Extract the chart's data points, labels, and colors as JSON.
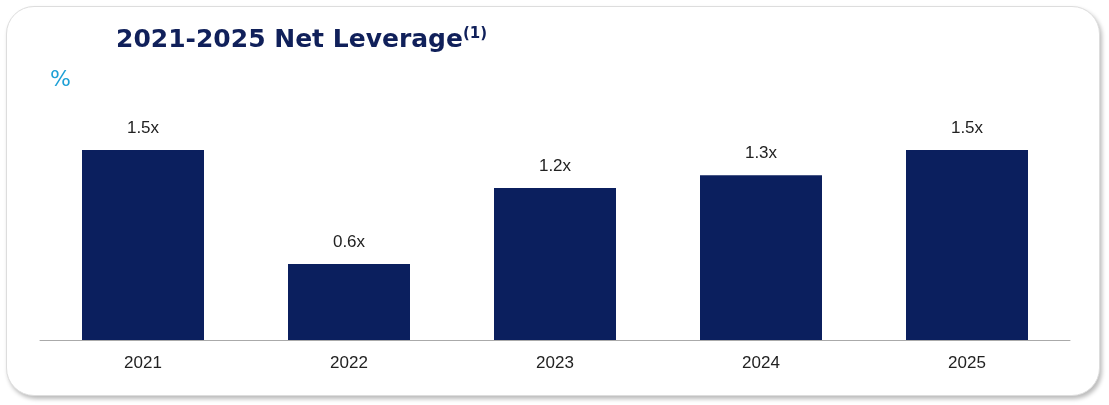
{
  "chart_data": {
    "type": "bar",
    "title": "2021-2025 Net Leverage$^{(1)}$",
    "subtitle": "%",
    "categories": [
      "2021",
      "2022",
      "2023",
      "2024",
      "2025"
    ],
    "values": [
      1.5,
      0.6,
      1.2,
      1.3,
      1.5
    ],
    "value_labels": [
      "1.5x",
      "0.6x",
      "1.2x",
      "1.3x",
      "1.5x"
    ],
    "color": "#0b1f5e"
  }
}
